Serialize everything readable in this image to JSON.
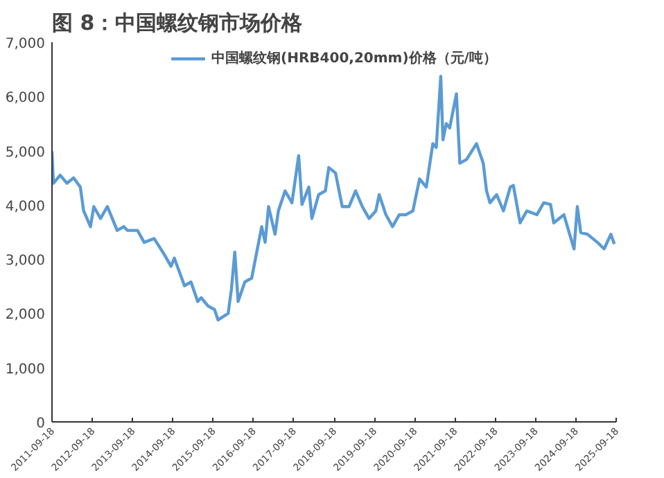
{
  "chart_data": {
    "type": "line",
    "title": "图 8：中国螺纹钢市场价格",
    "x": [
      "2011-09-18",
      "2011-10",
      "2011-12",
      "2012-02",
      "2012-04",
      "2012-06",
      "2012-07",
      "2012-09",
      "2012-10",
      "2012-12",
      "2013-02",
      "2013-05",
      "2013-07",
      "2013-08",
      "2013-11",
      "2014-01",
      "2014-04",
      "2014-07",
      "2014-09",
      "2014-10",
      "2015-01",
      "2015-03",
      "2015-05",
      "2015-06",
      "2015-08",
      "2015-10",
      "2015-11",
      "2016-02",
      "2016-03",
      "2016-04",
      "2016-05",
      "2016-07",
      "2016-09",
      "2016-12",
      "2017-01",
      "2017-02",
      "2017-04",
      "2017-05",
      "2017-07",
      "2017-09",
      "2017-11",
      "2017-12",
      "2018-02",
      "2018-03",
      "2018-05",
      "2018-07",
      "2018-08",
      "2018-10",
      "2018-12",
      "2019-02",
      "2019-04",
      "2019-06",
      "2019-08",
      "2019-10",
      "2019-11",
      "2020-01",
      "2020-03",
      "2020-05",
      "2020-07",
      "2020-09",
      "2020-11",
      "2021-01",
      "2021-03",
      "2021-04",
      "2021-05-12",
      "2021-06",
      "2021-07",
      "2021-08",
      "2021-10",
      "2021-11",
      "2022-01",
      "2022-04",
      "2022-06",
      "2022-07",
      "2022-08",
      "2022-10",
      "2022-12",
      "2023-02",
      "2023-03",
      "2023-05",
      "2023-07",
      "2023-10",
      "2023-12",
      "2024-02",
      "2024-03",
      "2024-06",
      "2024-09",
      "2024-10",
      "2024-11",
      "2025-01",
      "2025-04",
      "2025-06",
      "2025-08",
      "2025-09"
    ],
    "series": [
      {
        "name": "中国螺纹钢(HRB400,20mm)价格（元/吨）",
        "color": "#5b9bd5",
        "values": [
          4990,
          4400,
          4550,
          4400,
          4500,
          4330,
          3890,
          3600,
          3970,
          3750,
          3970,
          3530,
          3600,
          3530,
          3530,
          3310,
          3380,
          3090,
          2870,
          3020,
          2510,
          2580,
          2220,
          2290,
          2140,
          2070,
          1880,
          2000,
          2440,
          3130,
          2220,
          2580,
          2650,
          3600,
          3310,
          3970,
          3460,
          3890,
          4260,
          4040,
          4910,
          4010,
          4330,
          3750,
          4190,
          4260,
          4690,
          4590,
          3970,
          3970,
          4260,
          3970,
          3750,
          3890,
          4190,
          3820,
          3600,
          3820,
          3820,
          3890,
          4480,
          4330,
          5130,
          5060,
          6370,
          5200,
          5500,
          5420,
          6050,
          4770,
          4840,
          5130,
          4770,
          4260,
          4040,
          4190,
          3890,
          4330,
          4360,
          3670,
          3890,
          3820,
          4040,
          4010,
          3670,
          3820,
          3190,
          3970,
          3490,
          3460,
          3310,
          3190,
          3460,
          3280
        ]
      }
    ],
    "xlim": [
      "2011-09-18",
      "2025-09-18"
    ],
    "xticks": [
      "2011-09-18",
      "2012-09-18",
      "2013-09-18",
      "2014-09-18",
      "2015-09-18",
      "2016-09-18",
      "2017-09-18",
      "2018-09-18",
      "2019-09-18",
      "2020-09-18",
      "2021-09-18",
      "2022-09-18",
      "2023-09-18",
      "2024-09-18",
      "2025-09-18"
    ],
    "ylim": [
      0,
      7000
    ],
    "yticks": [
      {
        "value": 0,
        "label": "0"
      },
      {
        "value": 1000,
        "label": "1,000"
      },
      {
        "value": 2000,
        "label": "2,000"
      },
      {
        "value": 3000,
        "label": "3,000"
      },
      {
        "value": 4000,
        "label": "4,000"
      },
      {
        "value": 5000,
        "label": "5,000"
      },
      {
        "value": 6000,
        "label": "6,000"
      },
      {
        "value": 7000,
        "label": "7,000"
      }
    ],
    "grid": false,
    "legend": "top",
    "marker": "none",
    "line_style": "solid"
  }
}
